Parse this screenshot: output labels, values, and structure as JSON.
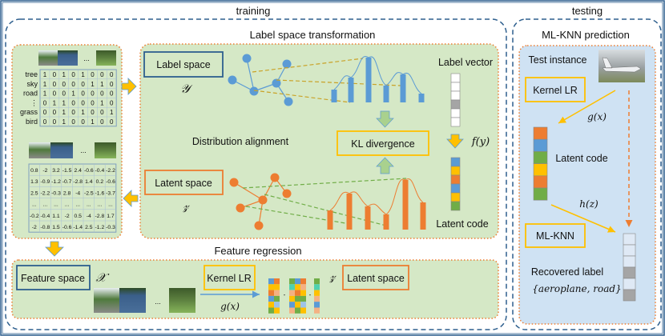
{
  "colors": {
    "blue": "#5b9bd5",
    "orange": "#ed7d31",
    "yellow": "#ffc000",
    "green": "#70ad47",
    "panel_green": "#d5e8c6",
    "panel_blue": "#cfe2f3",
    "frame": "#2e5f8e",
    "gray": "#a5a5a5",
    "teal": "#4fd1b0",
    "peach": "#f4b183",
    "lightblue": "#9dc3e6"
  },
  "training": {
    "title": "training",
    "left_panel": {
      "ellipsis": "...",
      "label_rows": [
        "tree",
        "sky",
        "road",
        "⋮",
        "grass",
        "bird"
      ],
      "label_matrix": [
        [
          1,
          0,
          1,
          0,
          1,
          0,
          0,
          0
        ],
        [
          1,
          0,
          0,
          0,
          0,
          1,
          1,
          0
        ],
        [
          1,
          0,
          0,
          1,
          0,
          0,
          0,
          0
        ],
        [
          0,
          1,
          1,
          0,
          0,
          0,
          1,
          0
        ],
        [
          0,
          0,
          1,
          0,
          1,
          0,
          0,
          1
        ],
        [
          0,
          0,
          1,
          0,
          0,
          1,
          0,
          0
        ]
      ],
      "latent_matrix": [
        [
          "0.8",
          "-2",
          "3.2",
          "-1.5",
          "2.4",
          "-0.6",
          "-0.4",
          "-2.2"
        ],
        [
          "1.3",
          "-0.9",
          "-1.2",
          "-0.7",
          "-2.8",
          "1.4",
          "0.2",
          "-0.6"
        ],
        [
          "2.5",
          "-2.2",
          "-0.3",
          "2.8",
          "-4",
          "-2.5",
          "-1.6",
          "-3.7"
        ],
        [
          "...",
          "...",
          "...",
          "...",
          "...",
          "...",
          "...",
          "..."
        ],
        [
          "-0.2",
          "-0.4",
          "1.1",
          "-2",
          "0.5",
          "-4",
          "-2.8",
          "1.7"
        ],
        [
          "-2",
          "-0.8",
          "1.5",
          "-0.6",
          "-1.4",
          "2.5",
          "-1.2",
          "-0.3"
        ]
      ]
    },
    "label_space_transformation": {
      "title": "Label space transformation",
      "label_space": "Label space",
      "label_symbol": "𝒴",
      "label_vector": "Label vector",
      "label_vector_cells": [
        "#ffffff",
        "#ffffff",
        "#ffffff",
        "#a5a5a5",
        "#ffffff",
        "#ffffff"
      ],
      "f_y": "f(y)",
      "distribution_alignment": "Distribution alignment",
      "kl_divergence": "KL divergence",
      "latent_space": "Latent space",
      "latent_symbol": "𝓏",
      "latent_code": "Latent code",
      "latent_code_cells": [
        "#5b9bd5",
        "#ffc000",
        "#ed7d31",
        "#5b9bd5",
        "#ffc000",
        "#70ad47"
      ]
    },
    "feature_regression": {
      "title": "Feature regression",
      "feature_space": "Feature space",
      "feature_symbol": "𝒳",
      "ellipsis": "...",
      "kernel_lr": "Kernel LR",
      "g_x": "g(x)",
      "dash": "-",
      "latent_symbol": "𝓏",
      "latent_space": "Latent space",
      "code_columns": [
        [
          "#5b9bd5",
          "#ffc000",
          "#ed7d31",
          "#5b9bd5",
          "#ffc000",
          "#70ad47"
        ],
        [
          "#ed7d31",
          "#ffc000",
          "#f4b183",
          "#70ad47",
          "#9dc3e6",
          "#ffc000"
        ],
        [
          "#70ad47",
          "#4fd1b0",
          "#f4b183",
          "#ffc000",
          "#5b9bd5",
          "#f4b183"
        ],
        [
          "#5b9bd5",
          "#ffc000",
          "#ed7d31",
          "#70ad47",
          "#ffc000",
          "#70ad47"
        ],
        [
          "#ed7d31",
          "#f4b183",
          "#ffc000",
          "#70ad47",
          "#9dc3e6",
          "#ffc000"
        ],
        [
          "#70ad47",
          "#4fd1b0",
          "#ffc000",
          "#f4b183",
          "#5b9bd5",
          "#f4b183"
        ]
      ]
    }
  },
  "testing": {
    "title": "testing",
    "prediction_title": "ML-KNN prediction",
    "test_instance": "Test instance",
    "kernel_lr": "Kernel LR",
    "g_x": "g(x)",
    "latent_code": "Latent code",
    "latent_code_cells": [
      "#ed7d31",
      "#5b9bd5",
      "#70ad47",
      "#ffc000",
      "#ed7d31",
      "#70ad47"
    ],
    "h_z": "h(z)",
    "ml_knn": "ML-KNN",
    "recovered_label": "Recovered label",
    "recovered_set": "{aeroplane, road}",
    "recovered_cells": [
      "#dfe9f5",
      "#dfe9f5",
      "#dfe9f5",
      "#a5a5a5",
      "#dfe9f5",
      "#a5a5a5"
    ]
  }
}
